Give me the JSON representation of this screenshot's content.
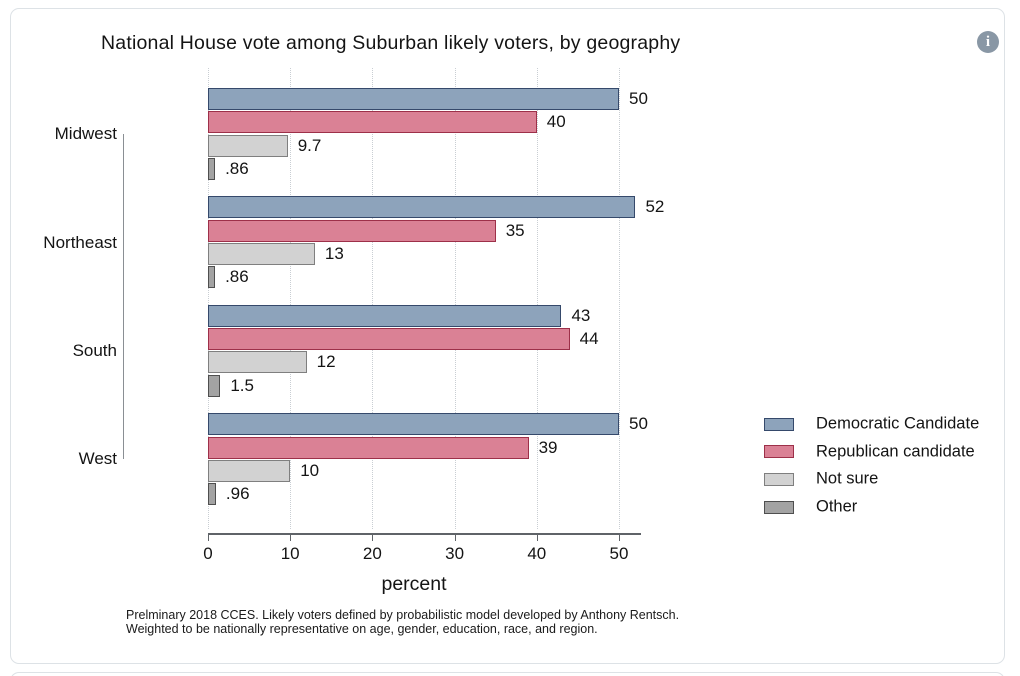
{
  "header": {
    "title": "National House vote among Suburban likely voters, by geography",
    "info_icon_glyph": "i"
  },
  "chart_data": {
    "type": "bar",
    "orientation": "horizontal",
    "title": "National House vote among Suburban likely voters, by geography",
    "categories": [
      "Midwest",
      "Northeast",
      "South",
      "West"
    ],
    "series": [
      {
        "name": "Democratic Candidate",
        "fill": "#8da3bb",
        "border": "#35496b",
        "values": [
          50,
          52,
          43,
          50
        ],
        "labels": [
          "50",
          "52",
          "43",
          "50"
        ]
      },
      {
        "name": "Republican candidate",
        "fill": "#da8195",
        "border": "#9d3049",
        "values": [
          40,
          35,
          44,
          39
        ],
        "labels": [
          "40",
          "35",
          "44",
          "39"
        ]
      },
      {
        "name": "Not sure",
        "fill": "#d2d2d2",
        "border": "#7f7f7f",
        "values": [
          9.7,
          13,
          12,
          10
        ],
        "labels": [
          "9.7",
          "13",
          "12",
          "10"
        ]
      },
      {
        "name": "Other",
        "fill": "#a3a3a3",
        "border": "#4f4f4f",
        "values": [
          0.86,
          0.86,
          1.5,
          0.96
        ],
        "labels": [
          ".86",
          ".86",
          "1.5",
          ".96"
        ]
      }
    ],
    "xlabel": "percent",
    "xticks": [
      0,
      10,
      20,
      30,
      40,
      50
    ],
    "xtick_labels": [
      "0",
      "10",
      "20",
      "30",
      "40",
      "50"
    ],
    "xlim": [
      0,
      52.5
    ],
    "grid": "dotted-vertical",
    "legend_position": "right"
  },
  "notes": {
    "line1": "Prelminary 2018 CCES. Likely voters defined by probabilistic model developed by Anthony Rentsch.",
    "line2": "Weighted to be nationally representative on age, gender, education, race, and region."
  }
}
